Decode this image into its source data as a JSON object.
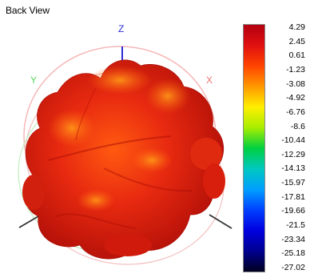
{
  "view": {
    "title": "Back View"
  },
  "axes": {
    "z": {
      "label": "Z",
      "color": "#2b2bd6"
    },
    "y": {
      "label": "Y",
      "color": "#5ad65a"
    },
    "x": {
      "label": "X",
      "color": "#f07070"
    }
  },
  "pattern": {
    "surface_color": "#e02010",
    "shadow_color": "#b81008",
    "highlight_color": "#ff7a10"
  },
  "colorbar": {
    "stops": [
      "#b40010",
      "#e01010",
      "#ff4400",
      "#ff9900",
      "#ffee00",
      "#a8ee00",
      "#00d040",
      "#00c8c0",
      "#00a0ff",
      "#0040ff",
      "#0000e0",
      "#000090",
      "#000020"
    ],
    "ticks": [
      "4.29",
      "2.45",
      "0.61",
      "-1.23",
      "-3.08",
      "-4.92",
      "-6.76",
      "-8.6",
      "-10.44",
      "-12.29",
      "-14.13",
      "-15.97",
      "-17.81",
      "-19.66",
      "-21.5",
      "-23.34",
      "-25.18",
      "-27.02"
    ]
  }
}
